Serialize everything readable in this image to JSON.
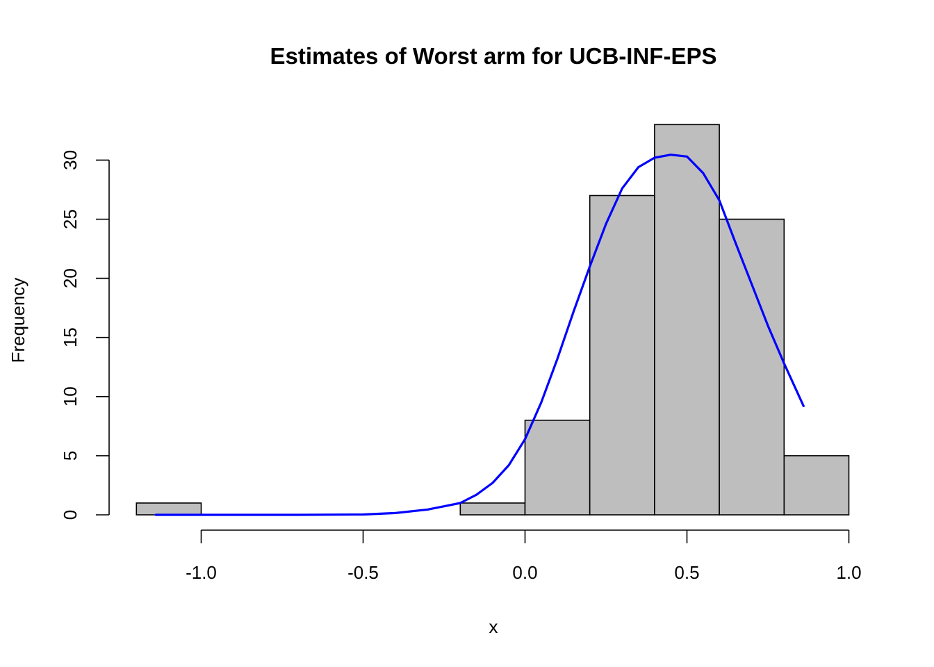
{
  "chart_data": {
    "type": "bar",
    "title": "Estimates of Worst arm for UCB-INF-EPS",
    "xlabel": "x",
    "ylabel": "Frequency",
    "xlim": [
      -1.2,
      1.0
    ],
    "ylim": [
      0,
      33
    ],
    "x_ticks": [
      -1.0,
      -0.5,
      0.0,
      0.5,
      1.0
    ],
    "x_tick_labels": [
      "-1.0",
      "-0.5",
      "0.0",
      "0.5",
      "1.0"
    ],
    "y_ticks": [
      0,
      5,
      10,
      15,
      20,
      25,
      30
    ],
    "y_tick_labels": [
      "0",
      "5",
      "10",
      "15",
      "20",
      "25",
      "30"
    ],
    "bins": [
      {
        "start": -1.2,
        "end": -1.0,
        "count": 1
      },
      {
        "start": -1.0,
        "end": -0.8,
        "count": 0
      },
      {
        "start": -0.8,
        "end": -0.6,
        "count": 0
      },
      {
        "start": -0.6,
        "end": -0.4,
        "count": 0
      },
      {
        "start": -0.4,
        "end": -0.2,
        "count": 0
      },
      {
        "start": -0.2,
        "end": 0.0,
        "count": 1
      },
      {
        "start": 0.0,
        "end": 0.2,
        "count": 8
      },
      {
        "start": 0.2,
        "end": 0.4,
        "count": 27
      },
      {
        "start": 0.4,
        "end": 0.6,
        "count": 33
      },
      {
        "start": 0.6,
        "end": 0.8,
        "count": 25
      },
      {
        "start": 0.8,
        "end": 1.0,
        "count": 5
      }
    ],
    "bar_color": "#bebebe",
    "bar_border": "#000000",
    "curve": {
      "color": "#0000ff",
      "points": [
        [
          -1.14,
          0.0
        ],
        [
          -0.9,
          0.0
        ],
        [
          -0.7,
          0.0
        ],
        [
          -0.5,
          0.03
        ],
        [
          -0.4,
          0.15
        ],
        [
          -0.3,
          0.45
        ],
        [
          -0.2,
          1.0
        ],
        [
          -0.15,
          1.7
        ],
        [
          -0.1,
          2.7
        ],
        [
          -0.05,
          4.2
        ],
        [
          0.0,
          6.4
        ],
        [
          0.05,
          9.5
        ],
        [
          0.1,
          13.2
        ],
        [
          0.15,
          17.2
        ],
        [
          0.2,
          21.0
        ],
        [
          0.25,
          24.6
        ],
        [
          0.3,
          27.6
        ],
        [
          0.35,
          29.4
        ],
        [
          0.4,
          30.2
        ],
        [
          0.45,
          30.45
        ],
        [
          0.5,
          30.3
        ],
        [
          0.55,
          28.9
        ],
        [
          0.6,
          26.6
        ],
        [
          0.65,
          23.0
        ],
        [
          0.7,
          19.5
        ],
        [
          0.75,
          16.0
        ],
        [
          0.8,
          12.8
        ],
        [
          0.86,
          9.2
        ]
      ]
    },
    "grid": false,
    "legend": "none"
  }
}
